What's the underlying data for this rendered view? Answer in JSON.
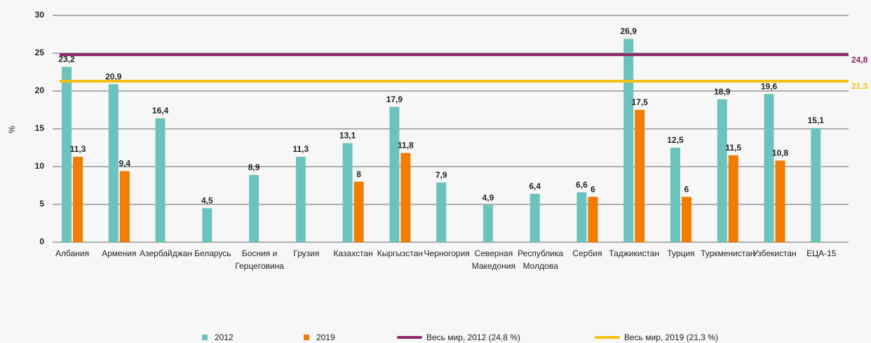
{
  "chart_data": {
    "type": "bar",
    "y_label": "%",
    "categories": [
      "Албания",
      "Армения",
      "Азербайджан",
      "Беларусь",
      "Босния и\nГерцеговина",
      "Грузия",
      "Казахстан",
      "Кыргызстан",
      "Черногория",
      "Северная\nМакедония",
      "Республика\nМолдова",
      "Сербия",
      "Таджикистан",
      "Турция",
      "Туркменистан",
      "Узбекистан",
      "ЕЦА-15"
    ],
    "series": [
      {
        "name": "2012",
        "color": "#6cc3bd",
        "values": [
          23.2,
          20.9,
          16.4,
          4.5,
          8.9,
          11.3,
          13.1,
          17.9,
          7.9,
          4.9,
          6.4,
          6.6,
          26.9,
          12.5,
          18.9,
          19.6,
          15.1
        ],
        "value_labels": [
          "23,2",
          "20,9",
          "16,4",
          "4,5",
          "8,9",
          "11,3",
          "13,1",
          "17,9",
          "7,9",
          "4,9",
          "6,4",
          "6,6",
          "26,9",
          "12,5",
          "18,9",
          "19,6",
          "15,1"
        ]
      },
      {
        "name": "2019",
        "color": "#f07c00",
        "values": [
          11.3,
          9.4,
          null,
          null,
          null,
          null,
          8,
          11.8,
          null,
          null,
          null,
          6,
          17.5,
          6,
          11.5,
          10.8,
          null
        ],
        "value_labels": [
          "11,3",
          "9,4",
          null,
          null,
          null,
          null,
          "8",
          "11,8",
          null,
          null,
          null,
          "6",
          "17,5",
          "6",
          "11,5",
          "10,8",
          null
        ]
      }
    ],
    "reference_lines": [
      {
        "name": "Весь мир, 2012 (24,8 %)",
        "value": 24.8,
        "label": "24,8",
        "color": "#8b2868"
      },
      {
        "name": "Весь мир, 2019 (21,3 %)",
        "value": 21.3,
        "label": "21,3",
        "color": "#f5c116"
      }
    ],
    "ylim": [
      0,
      30
    ],
    "yticks": [
      0,
      5,
      10,
      15,
      20,
      25,
      30
    ],
    "grid": true
  }
}
